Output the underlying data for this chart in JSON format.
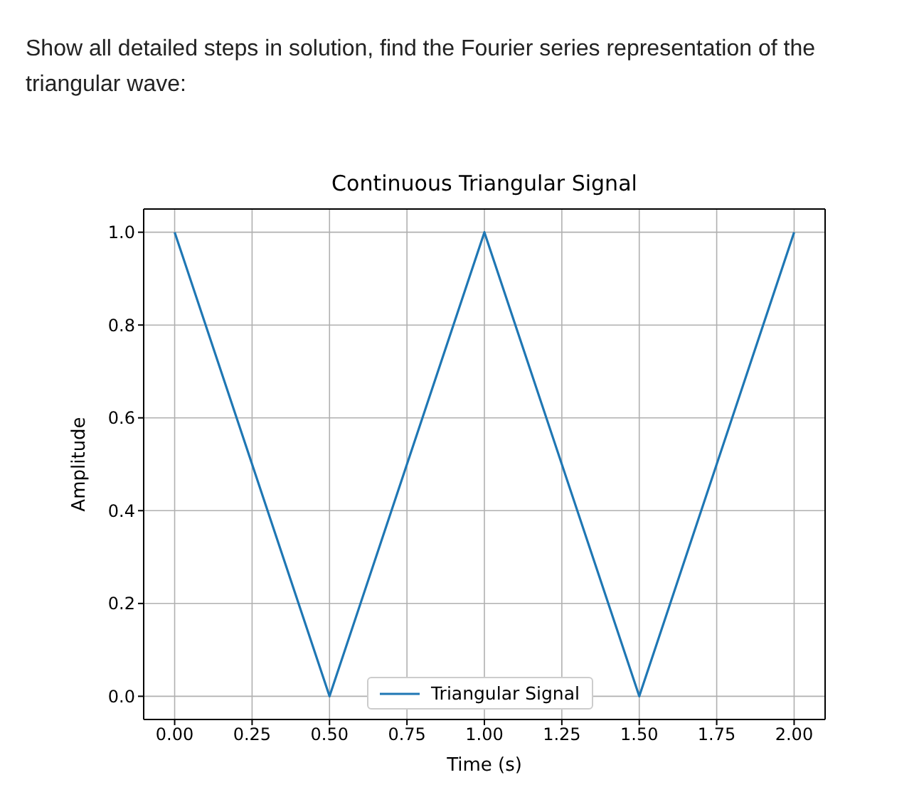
{
  "chart_data": {
    "type": "line",
    "title": "Continuous Triangular Signal",
    "xlabel": "Time (s)",
    "ylabel": "Amplitude",
    "annotations": [
      "Show all detailed steps in solution, find the Fourier series representation of the triangular wave:"
    ],
    "x": [
      0,
      0.5,
      1,
      1.5,
      2
    ],
    "series": [
      {
        "name": "Triangular Signal",
        "color": "#1f77b4",
        "values": [
          1,
          0,
          1,
          0,
          1
        ]
      }
    ],
    "xlim": [
      -0.1,
      2.1
    ],
    "xticks": [
      {
        "value": 0,
        "label": "0.00"
      },
      {
        "value": 0.25,
        "label": "0.25"
      },
      {
        "value": 0.5,
        "label": "0.50"
      },
      {
        "value": 0.75,
        "label": "0.75"
      },
      {
        "value": 1,
        "label": "1.00"
      },
      {
        "value": 1.25,
        "label": "1.25"
      },
      {
        "value": 1.5,
        "label": "1.50"
      },
      {
        "value": 1.75,
        "label": "1.75"
      },
      {
        "value": 2,
        "label": "2.00"
      }
    ],
    "ylim": [
      -0.05,
      1.05
    ],
    "yticks": [
      {
        "value": 0,
        "label": "0.0"
      },
      {
        "value": 0.2,
        "label": "0.2"
      },
      {
        "value": 0.4,
        "label": "0.4"
      },
      {
        "value": 0.6,
        "label": "0.6"
      },
      {
        "value": 0.8,
        "label": "0.8"
      },
      {
        "value": 1,
        "label": "1.0"
      }
    ],
    "grid": true,
    "legend": "bottom",
    "marker": "none",
    "line_style": "solid"
  }
}
